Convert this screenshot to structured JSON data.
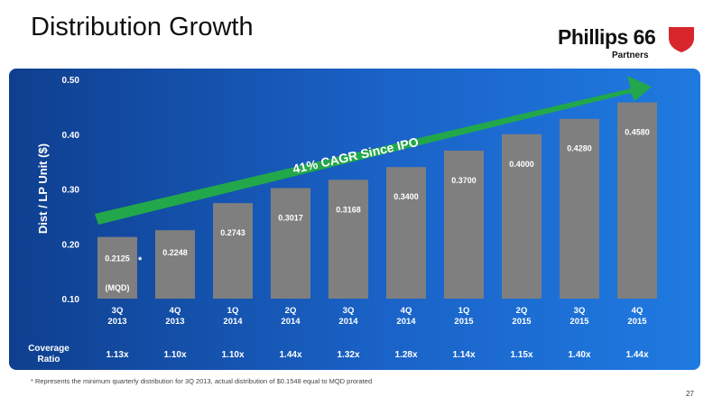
{
  "slide": {
    "title": "Distribution Growth",
    "footnote": "* Represents the minimum quarterly distribution for 3Q 2013, actual distribution of $0.1548 equal to MQD prorated",
    "page_number": "27"
  },
  "logo": {
    "name": "Phillips 66",
    "sub": "Partners"
  },
  "chart_data": {
    "type": "bar",
    "ylabel": "Dist / LP Unit ($)",
    "ylim": [
      0.1,
      0.5
    ],
    "yticks": [
      "0.10",
      "0.20",
      "0.30",
      "0.40",
      "0.50"
    ],
    "categories": [
      "3Q\n2013",
      "4Q\n2013",
      "1Q\n2014",
      "2Q\n2014",
      "3Q\n2014",
      "4Q\n2014",
      "1Q\n2015",
      "2Q\n2015",
      "3Q\n2015",
      "4Q\n2015"
    ],
    "values": [
      0.2125,
      0.2248,
      0.2743,
      0.3017,
      0.3168,
      0.34,
      0.37,
      0.4,
      0.428,
      0.458
    ],
    "value_labels": [
      "0.2125",
      "0.2248",
      "0.2743",
      "0.3017",
      "0.3168",
      "0.3400",
      "0.3700",
      "0.4000",
      "0.4280",
      "0.4580"
    ],
    "first_bar_note": "(MQD)",
    "first_bar_marker": "*",
    "arrow_label": "41% CAGR Since IPO",
    "coverage_label": "Coverage\nRatio",
    "coverage": [
      "1.13x",
      "1.10x",
      "1.10x",
      "1.44x",
      "1.32x",
      "1.28x",
      "1.14x",
      "1.15x",
      "1.40x",
      "1.44x"
    ],
    "colors": {
      "bar": "#7f7f7f",
      "arrow": "#22a84a",
      "text": "#ffffff"
    }
  }
}
